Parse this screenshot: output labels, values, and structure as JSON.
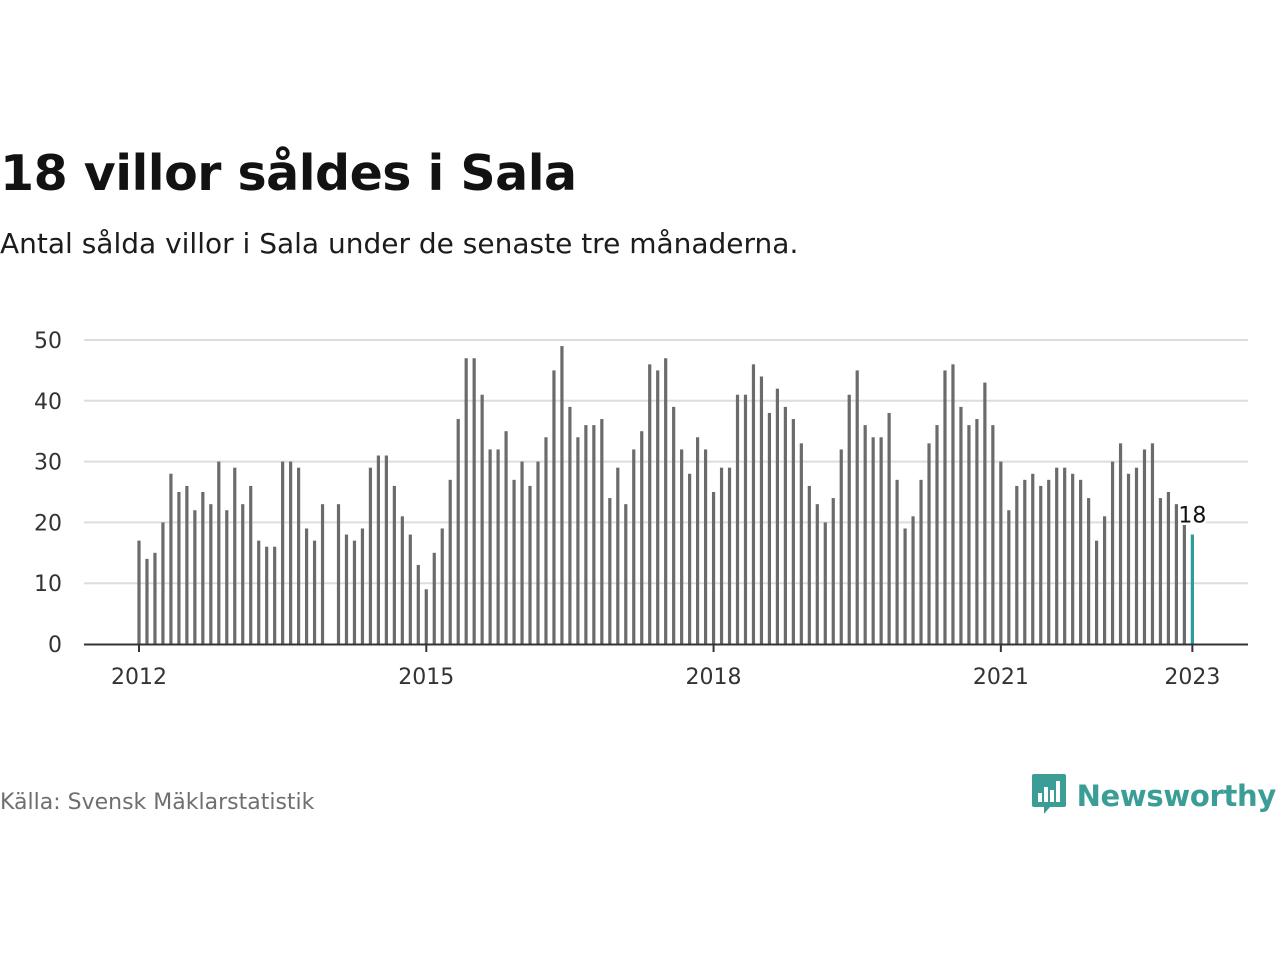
{
  "title": "18 villor såldes i Sala",
  "subtitle": "Antal sålda villor i Sala under de senaste tre månaderna.",
  "source": "Källa: Svensk Mäklarstatistik",
  "brand": {
    "name": "Newsworthy",
    "icon": "bar-chart-speech-bubble-icon",
    "color": "#3a9d96"
  },
  "colors": {
    "bar": "#6b6b6b",
    "highlight": "#2a9d96",
    "grid": "#dddddd",
    "axis": "#333333"
  },
  "chart_data": {
    "type": "bar",
    "title": "18 villor såldes i Sala",
    "subtitle": "Antal sålda villor i Sala under de senaste tre månaderna.",
    "xlabel": "",
    "ylabel": "",
    "ylim": [
      0,
      50
    ],
    "yticks": [
      0,
      10,
      20,
      30,
      40,
      50
    ],
    "xticks": [
      "2012",
      "2015",
      "2018",
      "2021",
      "2023"
    ],
    "grid": true,
    "legend": "none",
    "x_start": "2012-01",
    "x_frequency": "monthly",
    "values": [
      17,
      14,
      15,
      20,
      28,
      25,
      26,
      22,
      25,
      23,
      30,
      22,
      29,
      23,
      26,
      17,
      16,
      16,
      30,
      30,
      29,
      19,
      17,
      23,
      0,
      23,
      18,
      17,
      19,
      29,
      31,
      31,
      26,
      21,
      18,
      13,
      9,
      15,
      19,
      27,
      37,
      47,
      47,
      41,
      32,
      32,
      35,
      27,
      30,
      26,
      30,
      34,
      45,
      49,
      39,
      34,
      36,
      36,
      37,
      24,
      29,
      23,
      32,
      35,
      46,
      45,
      47,
      39,
      32,
      28,
      34,
      32,
      25,
      29,
      29,
      41,
      41,
      46,
      44,
      38,
      42,
      39,
      37,
      33,
      26,
      23,
      20,
      24,
      32,
      41,
      45,
      36,
      34,
      34,
      38,
      27,
      19,
      21,
      27,
      33,
      36,
      45,
      46,
      39,
      36,
      37,
      43,
      36,
      30,
      22,
      26,
      27,
      28,
      26,
      27,
      29,
      29,
      28,
      27,
      24,
      17,
      21,
      30,
      33,
      28,
      29,
      32,
      33,
      24,
      25,
      23,
      20,
      18
    ],
    "highlight": {
      "index": 132,
      "value": 18,
      "label": "18"
    }
  }
}
